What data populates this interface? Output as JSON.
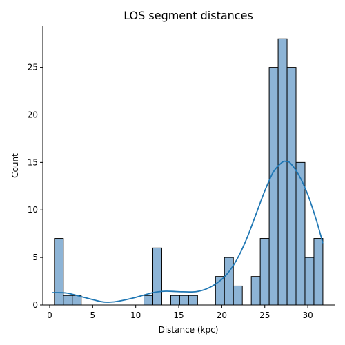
{
  "chart_data": {
    "type": "histogram",
    "title": "LOS segment distances",
    "xlabel": "Distance (kpc)",
    "ylabel": "Count",
    "xlim": [
      -0.8,
      33.2
    ],
    "ylim": [
      0,
      29.4
    ],
    "xticks": [
      0,
      5,
      10,
      15,
      20,
      25,
      30
    ],
    "yticks": [
      0,
      5,
      10,
      15,
      20,
      25
    ],
    "bin_edges": [
      0.55,
      1.59,
      2.63,
      3.67,
      4.71,
      5.75,
      6.79,
      7.83,
      8.87,
      9.91,
      10.95,
      11.99,
      13.03,
      14.07,
      15.11,
      16.15,
      17.19,
      18.23,
      19.27,
      20.31,
      21.35,
      22.39,
      23.43,
      24.47,
      25.51,
      26.55,
      27.59,
      28.63,
      29.67,
      30.71,
      31.75
    ],
    "counts": [
      7,
      1,
      1,
      0,
      0,
      0,
      0,
      0,
      0,
      0,
      1,
      6,
      0,
      1,
      1,
      1,
      0,
      0,
      3,
      5,
      2,
      0,
      3,
      7,
      25,
      28,
      25,
      15,
      5,
      7
    ],
    "bar_color": "#8db4d6",
    "kde_color": "#1f77b4",
    "kde": {
      "x": [
        0.3,
        2,
        4,
        6,
        7,
        8,
        10,
        12,
        13.5,
        15,
        17,
        18.5,
        20,
        21,
        22,
        23,
        24,
        25,
        26,
        27,
        27.5,
        28,
        29,
        30,
        31,
        31.75
      ],
      "y": [
        1.3,
        1.25,
        0.8,
        0.35,
        0.3,
        0.4,
        0.8,
        1.3,
        1.45,
        1.4,
        1.4,
        1.8,
        2.7,
        3.7,
        5.2,
        7.2,
        9.6,
        12.0,
        14.0,
        15.0,
        15.1,
        14.9,
        13.6,
        11.6,
        8.9,
        6.5
      ]
    }
  }
}
